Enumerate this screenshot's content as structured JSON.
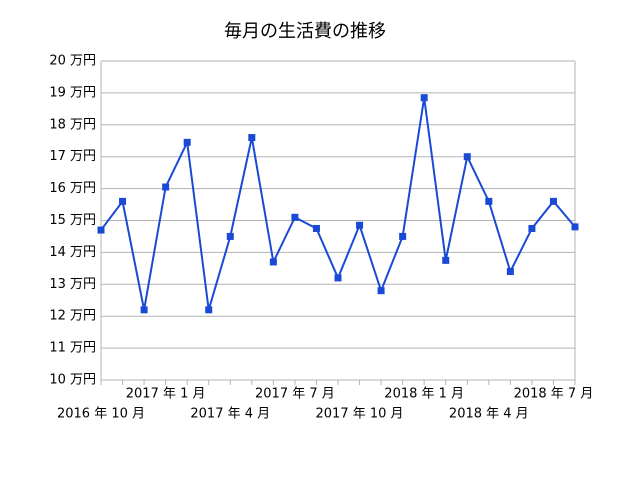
{
  "chart_data": {
    "type": "line",
    "title": "毎月の生活費の推移",
    "categories": [
      "2016 年 10 月",
      null,
      null,
      "2017 年 1 月",
      null,
      null,
      "2017 年 4 月",
      null,
      null,
      "2017 年 7 月",
      null,
      null,
      "2017 年 10 月",
      null,
      null,
      "2018 年 1 月",
      null,
      null,
      "2018 年 4 月",
      null,
      null,
      "2018 年 7 月",
      null
    ],
    "series": [
      {
        "color": "#1a49d6",
        "values": [
          14.7,
          15.6,
          12.2,
          16.05,
          17.45,
          12.2,
          14.5,
          17.6,
          13.7,
          15.1,
          14.75,
          13.2,
          14.85,
          12.8,
          14.5,
          18.85,
          13.75,
          17.0,
          15.6,
          13.4,
          14.75,
          15.6,
          14.8
        ]
      }
    ],
    "ylim": [
      10,
      20
    ],
    "yticks": [
      {
        "value": 10,
        "label": "10 万円"
      },
      {
        "value": 11,
        "label": "11 万円"
      },
      {
        "value": 12,
        "label": "12 万円"
      },
      {
        "value": 13,
        "label": "13 万円"
      },
      {
        "value": 14,
        "label": "14 万円"
      },
      {
        "value": 15,
        "label": "15 万円"
      },
      {
        "value": 16,
        "label": "16 万円"
      },
      {
        "value": 17,
        "label": "17 万円"
      },
      {
        "value": 18,
        "label": "18 万円"
      },
      {
        "value": 19,
        "label": "19 万円"
      },
      {
        "value": 20,
        "label": "20 万円"
      }
    ],
    "grid": true
  }
}
